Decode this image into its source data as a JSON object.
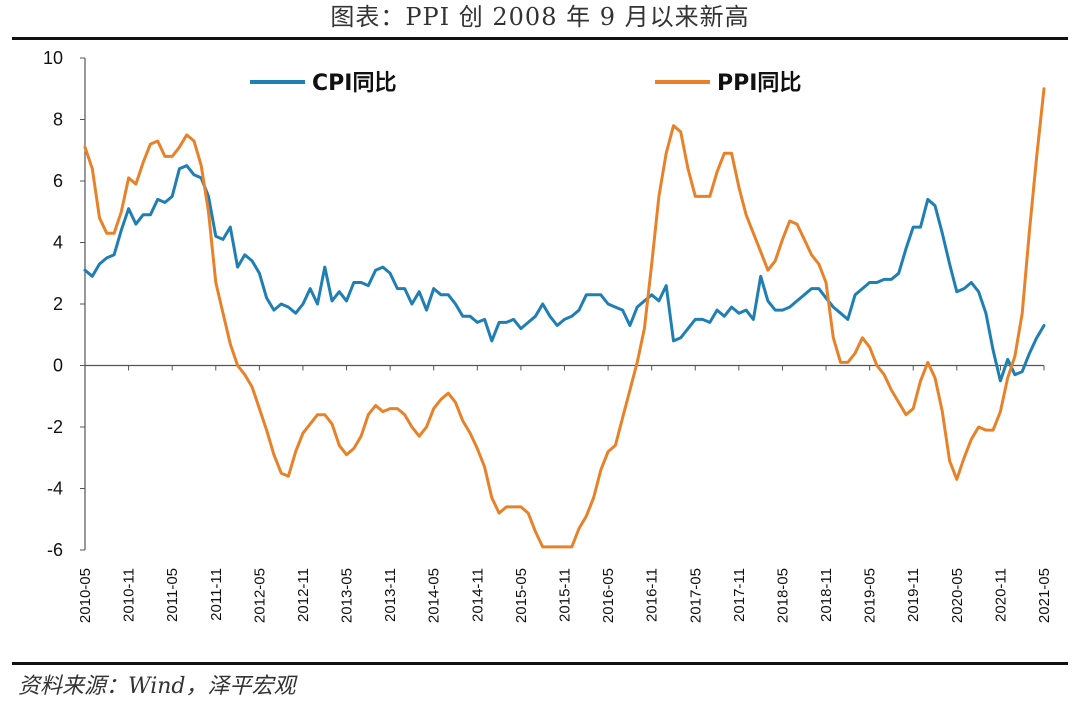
{
  "title": "图表：PPI 创 2008 年 9 月以来新高",
  "source": "资料来源：Wind，泽平宏观",
  "colors": {
    "cpi": "#1f7fb4",
    "ppi": "#e8822a",
    "axis": "#333333"
  },
  "chart_data": {
    "type": "line",
    "title": "图表：PPI 创 2008 年 9 月以来新高",
    "xlabel": "",
    "ylabel": "",
    "ylim": [
      -6,
      10
    ],
    "yticks": [
      10,
      8,
      6,
      4,
      2,
      0,
      -2,
      -4,
      -6
    ],
    "xrange": [
      "2010-05",
      "2021-05"
    ],
    "xticks": [
      "2010-05",
      "2010-11",
      "2011-05",
      "2011-11",
      "2012-05",
      "2012-11",
      "2013-05",
      "2013-11",
      "2014-05",
      "2014-11",
      "2015-05",
      "2015-11",
      "2016-05",
      "2016-11",
      "2017-05",
      "2017-11",
      "2018-05",
      "2018-11",
      "2019-05",
      "2019-11",
      "2020-05",
      "2020-11",
      "2021-05"
    ],
    "legend_position": "top",
    "series": [
      {
        "name": "CPI同比",
        "color": "#1f7fb4",
        "points": [
          [
            "2010-05",
            3.1
          ],
          [
            "2010-06",
            2.9
          ],
          [
            "2010-07",
            3.3
          ],
          [
            "2010-08",
            3.5
          ],
          [
            "2010-09",
            3.6
          ],
          [
            "2010-10",
            4.4
          ],
          [
            "2010-11",
            5.1
          ],
          [
            "2010-12",
            4.6
          ],
          [
            "2011-01",
            4.9
          ],
          [
            "2011-02",
            4.9
          ],
          [
            "2011-03",
            5.4
          ],
          [
            "2011-04",
            5.3
          ],
          [
            "2011-05",
            5.5
          ],
          [
            "2011-06",
            6.4
          ],
          [
            "2011-07",
            6.5
          ],
          [
            "2011-08",
            6.2
          ],
          [
            "2011-09",
            6.1
          ],
          [
            "2011-10",
            5.5
          ],
          [
            "2011-11",
            4.2
          ],
          [
            "2011-12",
            4.1
          ],
          [
            "2012-01",
            4.5
          ],
          [
            "2012-02",
            3.2
          ],
          [
            "2012-03",
            3.6
          ],
          [
            "2012-04",
            3.4
          ],
          [
            "2012-05",
            3.0
          ],
          [
            "2012-06",
            2.2
          ],
          [
            "2012-07",
            1.8
          ],
          [
            "2012-08",
            2.0
          ],
          [
            "2012-09",
            1.9
          ],
          [
            "2012-10",
            1.7
          ],
          [
            "2012-11",
            2.0
          ],
          [
            "2012-12",
            2.5
          ],
          [
            "2013-01",
            2.0
          ],
          [
            "2013-02",
            3.2
          ],
          [
            "2013-03",
            2.1
          ],
          [
            "2013-04",
            2.4
          ],
          [
            "2013-05",
            2.1
          ],
          [
            "2013-06",
            2.7
          ],
          [
            "2013-07",
            2.7
          ],
          [
            "2013-08",
            2.6
          ],
          [
            "2013-09",
            3.1
          ],
          [
            "2013-10",
            3.2
          ],
          [
            "2013-11",
            3.0
          ],
          [
            "2013-12",
            2.5
          ],
          [
            "2014-01",
            2.5
          ],
          [
            "2014-02",
            2.0
          ],
          [
            "2014-03",
            2.4
          ],
          [
            "2014-04",
            1.8
          ],
          [
            "2014-05",
            2.5
          ],
          [
            "2014-06",
            2.3
          ],
          [
            "2014-07",
            2.3
          ],
          [
            "2014-08",
            2.0
          ],
          [
            "2014-09",
            1.6
          ],
          [
            "2014-10",
            1.6
          ],
          [
            "2014-11",
            1.4
          ],
          [
            "2014-12",
            1.5
          ],
          [
            "2015-01",
            0.8
          ],
          [
            "2015-02",
            1.4
          ],
          [
            "2015-03",
            1.4
          ],
          [
            "2015-04",
            1.5
          ],
          [
            "2015-05",
            1.2
          ],
          [
            "2015-06",
            1.4
          ],
          [
            "2015-07",
            1.6
          ],
          [
            "2015-08",
            2.0
          ],
          [
            "2015-09",
            1.6
          ],
          [
            "2015-10",
            1.3
          ],
          [
            "2015-11",
            1.5
          ],
          [
            "2015-12",
            1.6
          ],
          [
            "2016-01",
            1.8
          ],
          [
            "2016-02",
            2.3
          ],
          [
            "2016-03",
            2.3
          ],
          [
            "2016-04",
            2.3
          ],
          [
            "2016-05",
            2.0
          ],
          [
            "2016-06",
            1.9
          ],
          [
            "2016-07",
            1.8
          ],
          [
            "2016-08",
            1.3
          ],
          [
            "2016-09",
            1.9
          ],
          [
            "2016-10",
            2.1
          ],
          [
            "2016-11",
            2.3
          ],
          [
            "2016-12",
            2.1
          ],
          [
            "2017-01",
            2.6
          ],
          [
            "2017-02",
            0.8
          ],
          [
            "2017-03",
            0.9
          ],
          [
            "2017-04",
            1.2
          ],
          [
            "2017-05",
            1.5
          ],
          [
            "2017-06",
            1.5
          ],
          [
            "2017-07",
            1.4
          ],
          [
            "2017-08",
            1.8
          ],
          [
            "2017-09",
            1.6
          ],
          [
            "2017-10",
            1.9
          ],
          [
            "2017-11",
            1.7
          ],
          [
            "2017-12",
            1.8
          ],
          [
            "2018-01",
            1.5
          ],
          [
            "2018-02",
            2.9
          ],
          [
            "2018-03",
            2.1
          ],
          [
            "2018-04",
            1.8
          ],
          [
            "2018-05",
            1.8
          ],
          [
            "2018-06",
            1.9
          ],
          [
            "2018-07",
            2.1
          ],
          [
            "2018-08",
            2.3
          ],
          [
            "2018-09",
            2.5
          ],
          [
            "2018-10",
            2.5
          ],
          [
            "2018-11",
            2.2
          ],
          [
            "2018-12",
            1.9
          ],
          [
            "2019-01",
            1.7
          ],
          [
            "2019-02",
            1.5
          ],
          [
            "2019-03",
            2.3
          ],
          [
            "2019-04",
            2.5
          ],
          [
            "2019-05",
            2.7
          ],
          [
            "2019-06",
            2.7
          ],
          [
            "2019-07",
            2.8
          ],
          [
            "2019-08",
            2.8
          ],
          [
            "2019-09",
            3.0
          ],
          [
            "2019-10",
            3.8
          ],
          [
            "2019-11",
            4.5
          ],
          [
            "2019-12",
            4.5
          ],
          [
            "2020-01",
            5.4
          ],
          [
            "2020-02",
            5.2
          ],
          [
            "2020-03",
            4.3
          ],
          [
            "2020-04",
            3.3
          ],
          [
            "2020-05",
            2.4
          ],
          [
            "2020-06",
            2.5
          ],
          [
            "2020-07",
            2.7
          ],
          [
            "2020-08",
            2.4
          ],
          [
            "2020-09",
            1.7
          ],
          [
            "2020-10",
            0.5
          ],
          [
            "2020-11",
            -0.5
          ],
          [
            "2020-12",
            0.2
          ],
          [
            "2021-01",
            -0.3
          ],
          [
            "2021-02",
            -0.2
          ],
          [
            "2021-03",
            0.4
          ],
          [
            "2021-04",
            0.9
          ],
          [
            "2021-05",
            1.3
          ]
        ]
      },
      {
        "name": "PPI同比",
        "color": "#e8822a",
        "points": [
          [
            "2010-05",
            7.1
          ],
          [
            "2010-06",
            6.4
          ],
          [
            "2010-07",
            4.8
          ],
          [
            "2010-08",
            4.3
          ],
          [
            "2010-09",
            4.3
          ],
          [
            "2010-10",
            5.0
          ],
          [
            "2010-11",
            6.1
          ],
          [
            "2010-12",
            5.9
          ],
          [
            "2011-01",
            6.6
          ],
          [
            "2011-02",
            7.2
          ],
          [
            "2011-03",
            7.3
          ],
          [
            "2011-04",
            6.8
          ],
          [
            "2011-05",
            6.8
          ],
          [
            "2011-06",
            7.1
          ],
          [
            "2011-07",
            7.5
          ],
          [
            "2011-08",
            7.3
          ],
          [
            "2011-09",
            6.5
          ],
          [
            "2011-10",
            5.0
          ],
          [
            "2011-11",
            2.7
          ],
          [
            "2011-12",
            1.7
          ],
          [
            "2012-01",
            0.7
          ],
          [
            "2012-02",
            0.0
          ],
          [
            "2012-03",
            -0.3
          ],
          [
            "2012-04",
            -0.7
          ],
          [
            "2012-05",
            -1.4
          ],
          [
            "2012-06",
            -2.1
          ],
          [
            "2012-07",
            -2.9
          ],
          [
            "2012-08",
            -3.5
          ],
          [
            "2012-09",
            -3.6
          ],
          [
            "2012-10",
            -2.8
          ],
          [
            "2012-11",
            -2.2
          ],
          [
            "2012-12",
            -1.9
          ],
          [
            "2013-01",
            -1.6
          ],
          [
            "2013-02",
            -1.6
          ],
          [
            "2013-03",
            -1.9
          ],
          [
            "2013-04",
            -2.6
          ],
          [
            "2013-05",
            -2.9
          ],
          [
            "2013-06",
            -2.7
          ],
          [
            "2013-07",
            -2.3
          ],
          [
            "2013-08",
            -1.6
          ],
          [
            "2013-09",
            -1.3
          ],
          [
            "2013-10",
            -1.5
          ],
          [
            "2013-11",
            -1.4
          ],
          [
            "2013-12",
            -1.4
          ],
          [
            "2014-01",
            -1.6
          ],
          [
            "2014-02",
            -2.0
          ],
          [
            "2014-03",
            -2.3
          ],
          [
            "2014-04",
            -2.0
          ],
          [
            "2014-05",
            -1.4
          ],
          [
            "2014-06",
            -1.1
          ],
          [
            "2014-07",
            -0.9
          ],
          [
            "2014-08",
            -1.2
          ],
          [
            "2014-09",
            -1.8
          ],
          [
            "2014-10",
            -2.2
          ],
          [
            "2014-11",
            -2.7
          ],
          [
            "2014-12",
            -3.3
          ],
          [
            "2015-01",
            -4.3
          ],
          [
            "2015-02",
            -4.8
          ],
          [
            "2015-03",
            -4.6
          ],
          [
            "2015-04",
            -4.6
          ],
          [
            "2015-05",
            -4.6
          ],
          [
            "2015-06",
            -4.8
          ],
          [
            "2015-07",
            -5.4
          ],
          [
            "2015-08",
            -5.9
          ],
          [
            "2015-09",
            -5.9
          ],
          [
            "2015-10",
            -5.9
          ],
          [
            "2015-11",
            -5.9
          ],
          [
            "2015-12",
            -5.9
          ],
          [
            "2016-01",
            -5.3
          ],
          [
            "2016-02",
            -4.9
          ],
          [
            "2016-03",
            -4.3
          ],
          [
            "2016-04",
            -3.4
          ],
          [
            "2016-05",
            -2.8
          ],
          [
            "2016-06",
            -2.6
          ],
          [
            "2016-07",
            -1.7
          ],
          [
            "2016-08",
            -0.8
          ],
          [
            "2016-09",
            0.1
          ],
          [
            "2016-10",
            1.2
          ],
          [
            "2016-11",
            3.3
          ],
          [
            "2016-12",
            5.5
          ],
          [
            "2017-01",
            6.9
          ],
          [
            "2017-02",
            7.8
          ],
          [
            "2017-03",
            7.6
          ],
          [
            "2017-04",
            6.4
          ],
          [
            "2017-05",
            5.5
          ],
          [
            "2017-06",
            5.5
          ],
          [
            "2017-07",
            5.5
          ],
          [
            "2017-08",
            6.3
          ],
          [
            "2017-09",
            6.9
          ],
          [
            "2017-10",
            6.9
          ],
          [
            "2017-11",
            5.8
          ],
          [
            "2017-12",
            4.9
          ],
          [
            "2018-01",
            4.3
          ],
          [
            "2018-02",
            3.7
          ],
          [
            "2018-03",
            3.1
          ],
          [
            "2018-04",
            3.4
          ],
          [
            "2018-05",
            4.1
          ],
          [
            "2018-06",
            4.7
          ],
          [
            "2018-07",
            4.6
          ],
          [
            "2018-08",
            4.1
          ],
          [
            "2018-09",
            3.6
          ],
          [
            "2018-10",
            3.3
          ],
          [
            "2018-11",
            2.7
          ],
          [
            "2018-12",
            0.9
          ],
          [
            "2019-01",
            0.1
          ],
          [
            "2019-02",
            0.1
          ],
          [
            "2019-03",
            0.4
          ],
          [
            "2019-04",
            0.9
          ],
          [
            "2019-05",
            0.6
          ],
          [
            "2019-06",
            0.0
          ],
          [
            "2019-07",
            -0.3
          ],
          [
            "2019-08",
            -0.8
          ],
          [
            "2019-09",
            -1.2
          ],
          [
            "2019-10",
            -1.6
          ],
          [
            "2019-11",
            -1.4
          ],
          [
            "2019-12",
            -0.5
          ],
          [
            "2020-01",
            0.1
          ],
          [
            "2020-02",
            -0.4
          ],
          [
            "2020-03",
            -1.5
          ],
          [
            "2020-04",
            -3.1
          ],
          [
            "2020-05",
            -3.7
          ],
          [
            "2020-06",
            -3.0
          ],
          [
            "2020-07",
            -2.4
          ],
          [
            "2020-08",
            -2.0
          ],
          [
            "2020-09",
            -2.1
          ],
          [
            "2020-10",
            -2.1
          ],
          [
            "2020-11",
            -1.5
          ],
          [
            "2020-12",
            -0.4
          ],
          [
            "2021-01",
            0.3
          ],
          [
            "2021-02",
            1.7
          ],
          [
            "2021-03",
            4.4
          ],
          [
            "2021-04",
            6.8
          ],
          [
            "2021-05",
            9.0
          ]
        ]
      }
    ]
  }
}
